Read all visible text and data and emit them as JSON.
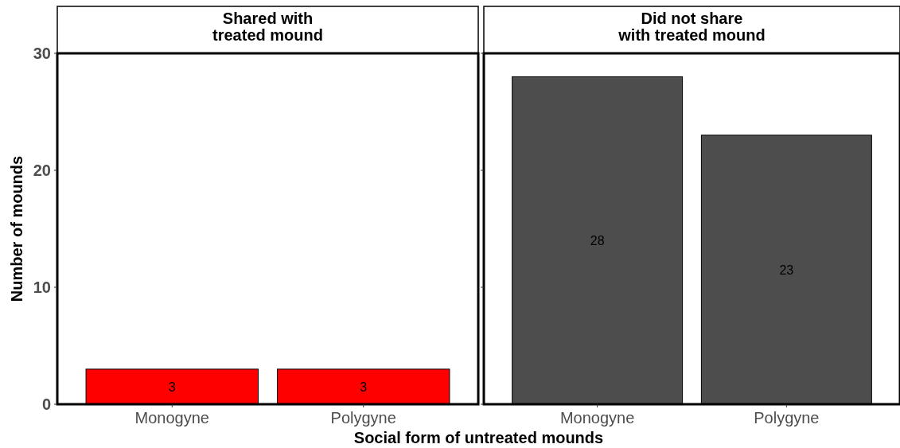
{
  "chart_data": [
    {
      "type": "bar",
      "title": "Shared with\ntreated mound",
      "categories": [
        "Monogyne",
        "Polygyne"
      ],
      "values": [
        3,
        3
      ],
      "color": "#ff0000",
      "data_labels": true,
      "ylim": [
        0,
        30
      ],
      "yticks": [
        0,
        10,
        20,
        30
      ],
      "ylabel": "Number of mounds",
      "xlabel": "Social form of untreated mounds"
    },
    {
      "type": "bar",
      "title": "Did not share\nwith treated mound",
      "categories": [
        "Monogyne",
        "Polygyne"
      ],
      "values": [
        28,
        23
      ],
      "color": "#4d4d4d",
      "data_labels": true,
      "ylim": [
        0,
        30
      ],
      "yticks": [
        0,
        10,
        20,
        30
      ],
      "tick_labels": "x"
    }
  ]
}
